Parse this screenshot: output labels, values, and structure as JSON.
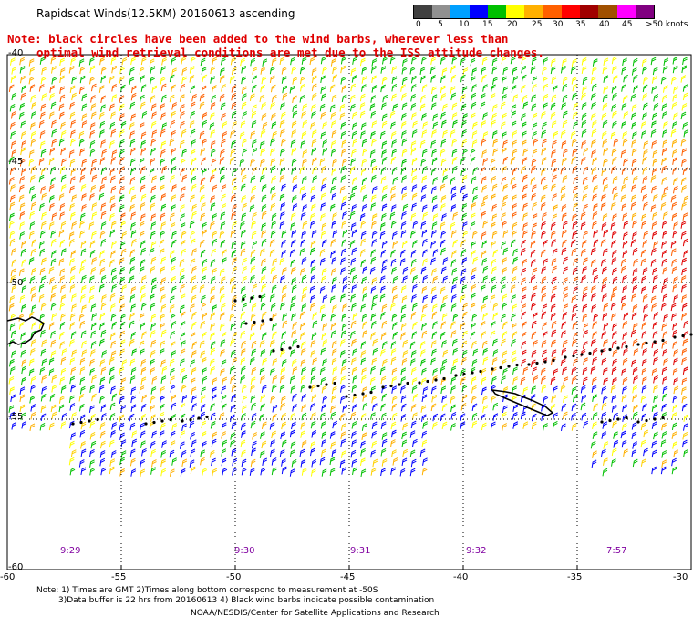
{
  "title": "Rapidscat Winds(12.5KM) 20160613 ascending",
  "note_line1": "Note: black circles have been added to the wind barbs, wherever less than",
  "note_line2": "optimal wind retrieval conditions are met due to the ISS attitude changes.",
  "legend": {
    "labels": [
      "0",
      "5",
      "10",
      "15",
      "20",
      "25",
      "30",
      "35",
      "40",
      "45",
      ">50 knots"
    ],
    "colors": [
      "#404040",
      "#909090",
      "#00a0ff",
      "#0000ff",
      "#00c000",
      "#ffff00",
      "#ffb000",
      "#ff6000",
      "#ff0000",
      "#a00000",
      "#a05000",
      "#ff00ff",
      "#800080"
    ]
  },
  "axes": {
    "x_ticks": [
      "-60",
      "-55",
      "-50",
      "-45",
      "-40",
      "-35",
      "-30"
    ],
    "y_ticks": [
      "-40",
      "-45",
      "-50",
      "-55",
      "-60"
    ]
  },
  "time_labels": [
    "9:29",
    "9:30",
    "9:31",
    "9:32",
    "7:57"
  ],
  "footer": {
    "line1": "Note: 1) Times are GMT 2)Times along bottom correspond to measurement at -50S",
    "line2": "3)Data buffer is 22 hrs from 20160613 4) Black wind barbs indicate possible contamination",
    "credit": "NOAA/NESDIS/Center for Satellite Applications and Research"
  }
}
